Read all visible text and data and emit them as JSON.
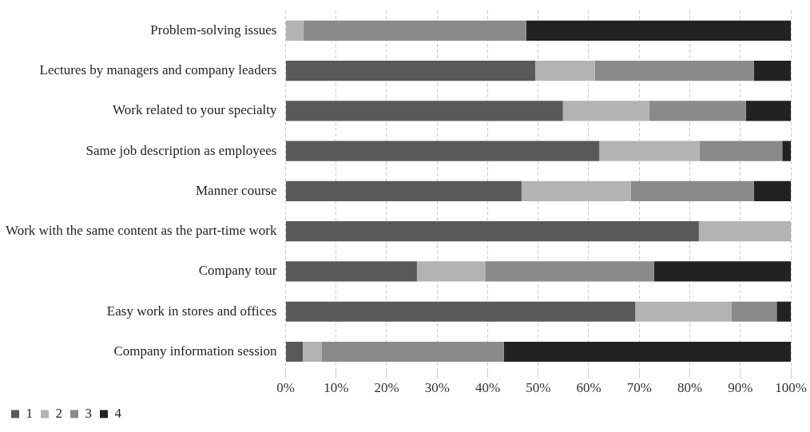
{
  "chart_data": {
    "type": "bar",
    "orientation": "horizontal",
    "stacked": true,
    "categories": [
      "Problem-solving issues",
      "Lectures by managers and company leaders",
      "Work related to your specialty",
      "Same job description as employees",
      "Manner course",
      "Work with the same content as the part-time work",
      "Company tour",
      "Easy work in stores and offices",
      "Company information session"
    ],
    "series": [
      {
        "name": "1",
        "color": "#595959",
        "values": [
          0,
          49.4,
          54.9,
          62.1,
          46.7,
          81.8,
          26.0,
          69.2,
          3.4
        ]
      },
      {
        "name": "2",
        "color": "#b3b3b3",
        "values": [
          3.5,
          11.8,
          17.1,
          19.8,
          21.6,
          18.2,
          13.5,
          19.1,
          3.7
        ]
      },
      {
        "name": "3",
        "color": "#8a8a8a",
        "values": [
          44.1,
          31.5,
          19.1,
          16.4,
          24.4,
          0,
          33.4,
          8.9,
          36.1
        ]
      },
      {
        "name": "4",
        "color": "#222222",
        "values": [
          52.4,
          7.3,
          8.9,
          1.7,
          7.3,
          0,
          27.1,
          2.8,
          56.8
        ]
      }
    ],
    "xlim": [
      0,
      100
    ],
    "xticks": [
      {
        "value": 0,
        "label": "0%"
      },
      {
        "value": 10,
        "label": "10%"
      },
      {
        "value": 20,
        "label": "20%"
      },
      {
        "value": 30,
        "label": "30%"
      },
      {
        "value": 40,
        "label": "40%"
      },
      {
        "value": 50,
        "label": "50%"
      },
      {
        "value": 60,
        "label": "60%"
      },
      {
        "value": 70,
        "label": "70%"
      },
      {
        "value": 80,
        "label": "80%"
      },
      {
        "value": 90,
        "label": "90%"
      },
      {
        "value": 100,
        "label": "100%"
      }
    ],
    "grid": "x",
    "legend": "bottom"
  }
}
